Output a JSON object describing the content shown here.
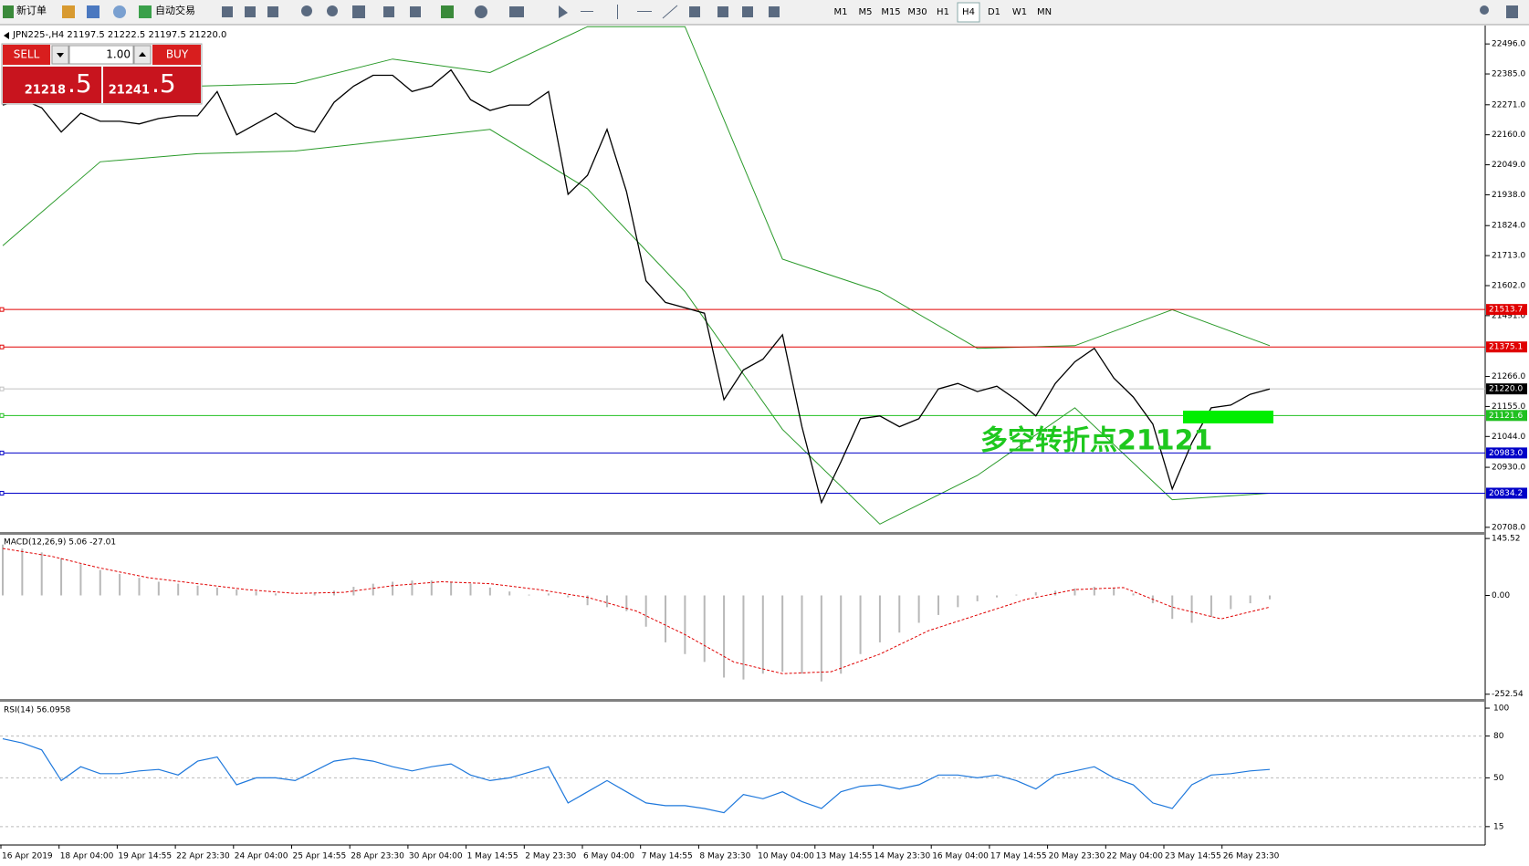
{
  "toolbar": {
    "new_order": "新订单",
    "auto_trade": "自动交易",
    "timeframes": [
      "M1",
      "M5",
      "M15",
      "M30",
      "H1",
      "H4",
      "D1",
      "W1",
      "MN"
    ],
    "active": "H4"
  },
  "symbol_header": "JPN225-,H4  21197.5 21222.5 21197.5 21220.0",
  "trade_panel": {
    "sell": "SELL",
    "buy": "BUY",
    "lots": "1.00",
    "bid_main": "21218",
    "bid_tail": ".5",
    "ask_main": "21241",
    "ask_tail": ".5"
  },
  "price_chart": {
    "ylim": [
      20694,
      22564
    ],
    "yticks": [
      {
        "value": 22496,
        "label": "22496.0"
      },
      {
        "value": 22385,
        "label": "22385.0"
      },
      {
        "value": 22271,
        "label": "22271.0"
      },
      {
        "value": 22160,
        "label": "22160.0"
      },
      {
        "value": 22049,
        "label": "22049.0"
      },
      {
        "value": 21938,
        "label": "21938.0"
      },
      {
        "value": 21824,
        "label": "21824.0"
      },
      {
        "value": 21713,
        "label": "21713.0"
      },
      {
        "value": 21602,
        "label": "21602.0"
      },
      {
        "value": 21491,
        "label": "21491.0"
      },
      {
        "value": 21266,
        "label": "21266.0"
      },
      {
        "value": 21155,
        "label": "21155.0"
      },
      {
        "value": 21044,
        "label": "21044.0"
      },
      {
        "value": 20930,
        "label": "20930.0"
      },
      {
        "value": 20708,
        "label": "20708.0"
      }
    ],
    "close": [
      22270,
      22290,
      22260,
      22170,
      22240,
      22210,
      22210,
      22200,
      22220,
      22230,
      22230,
      22320,
      22160,
      22200,
      22240,
      22190,
      22170,
      22280,
      22340,
      22380,
      22380,
      22320,
      22340,
      22400,
      22290,
      22250,
      22270,
      22270,
      22320,
      21940,
      22010,
      22180,
      21950,
      21620,
      21540,
      21520,
      21500,
      21180,
      21290,
      21330,
      21420,
      21080,
      20800,
      20950,
      21110,
      21120,
      21080,
      21110,
      21220,
      21240,
      21210,
      21230,
      21180,
      21120,
      21240,
      21320,
      21370,
      21260,
      21190,
      21090,
      20850,
      21020,
      21150,
      21160,
      21200,
      21220
    ],
    "upper_band": [
      22300,
      22290,
      22340,
      22350,
      22440,
      22390,
      22560,
      22560,
      21700,
      21580,
      21370,
      21380,
      21513,
      21380
    ],
    "lower_band": [
      21750,
      22060,
      22090,
      22100,
      22140,
      22180,
      21960,
      21580,
      21070,
      20720,
      20900,
      21150,
      20810,
      20834
    ],
    "levels": [
      {
        "value": 21513.7,
        "color": "#e00000"
      },
      {
        "value": 21375.1,
        "color": "#e00000"
      },
      {
        "value": 21121.6,
        "color": "#20c020"
      },
      {
        "value": 20983,
        "label": "20983.0",
        "color": "#0000c8"
      },
      {
        "value": 20834.2,
        "color": "#0000c8"
      }
    ],
    "current": {
      "value": 21220,
      "label": "21220.0"
    },
    "annotation": "多空转折点21121"
  },
  "macd": {
    "title": "MACD(12,26,9) 5.06 -27.01",
    "ylim": [
      -264.8,
      155.1
    ],
    "yticks": [
      145.52,
      {
        "value": 0,
        "label": "0.00"
      },
      -252.54
    ],
    "histogram": [
      130,
      120,
      110,
      95,
      80,
      65,
      55,
      45,
      35,
      30,
      25,
      20,
      15,
      10,
      5,
      0,
      5,
      12,
      22,
      30,
      35,
      38,
      38,
      35,
      30,
      20,
      10,
      2,
      5,
      -5,
      -25,
      -30,
      -40,
      -80,
      -120,
      -150,
      -170,
      -210,
      -215,
      -200,
      -195,
      -200,
      -220,
      -200,
      -150,
      -120,
      -95,
      -70,
      -50,
      -30,
      -15,
      -5,
      2,
      8,
      12,
      18,
      22,
      18,
      5,
      -20,
      -60,
      -70,
      -55,
      -35,
      -20,
      -10
    ],
    "signal": [
      120,
      100,
      70,
      45,
      30,
      15,
      5,
      8,
      25,
      35,
      30,
      15,
      -5,
      -40,
      -100,
      -170,
      -200,
      -195,
      -150,
      -90,
      -50,
      -10,
      15,
      20,
      -30,
      -60,
      -30
    ]
  },
  "rsi": {
    "title": "RSI(14) 56.0958",
    "ylim": [
      1.8,
      104.6
    ],
    "yticks": [
      100,
      80,
      50,
      15
    ],
    "levels": [
      80,
      50,
      15
    ],
    "values": [
      78,
      75,
      70,
      48,
      58,
      53,
      53,
      55,
      56,
      52,
      62,
      65,
      45,
      50,
      50,
      48,
      55,
      62,
      64,
      62,
      58,
      55,
      58,
      60,
      52,
      48,
      50,
      54,
      58,
      32,
      40,
      48,
      40,
      32,
      30,
      30,
      28,
      25,
      38,
      35,
      40,
      33,
      28,
      40,
      44,
      45,
      42,
      45,
      52,
      52,
      50,
      52,
      48,
      42,
      52,
      55,
      58,
      50,
      45,
      32,
      28,
      45,
      52,
      53,
      55,
      56
    ]
  },
  "time_axis": [
    "16 Apr 2019",
    "18 Apr 04:00",
    "19 Apr 14:55",
    "22 Apr 23:30",
    "24 Apr 04:00",
    "25 Apr 14:55",
    "28 Apr 23:30",
    "30 Apr 04:00",
    "1 May 14:55",
    "2 May 23:30",
    "6 May 04:00",
    "7 May 14:55",
    "8 May 23:30",
    "10 May 04:00",
    "13 May 14:55",
    "14 May 23:30",
    "16 May 04:00",
    "17 May 14:55",
    "20 May 23:30",
    "22 May 04:00",
    "23 May 14:55",
    "26 May 23:30"
  ]
}
